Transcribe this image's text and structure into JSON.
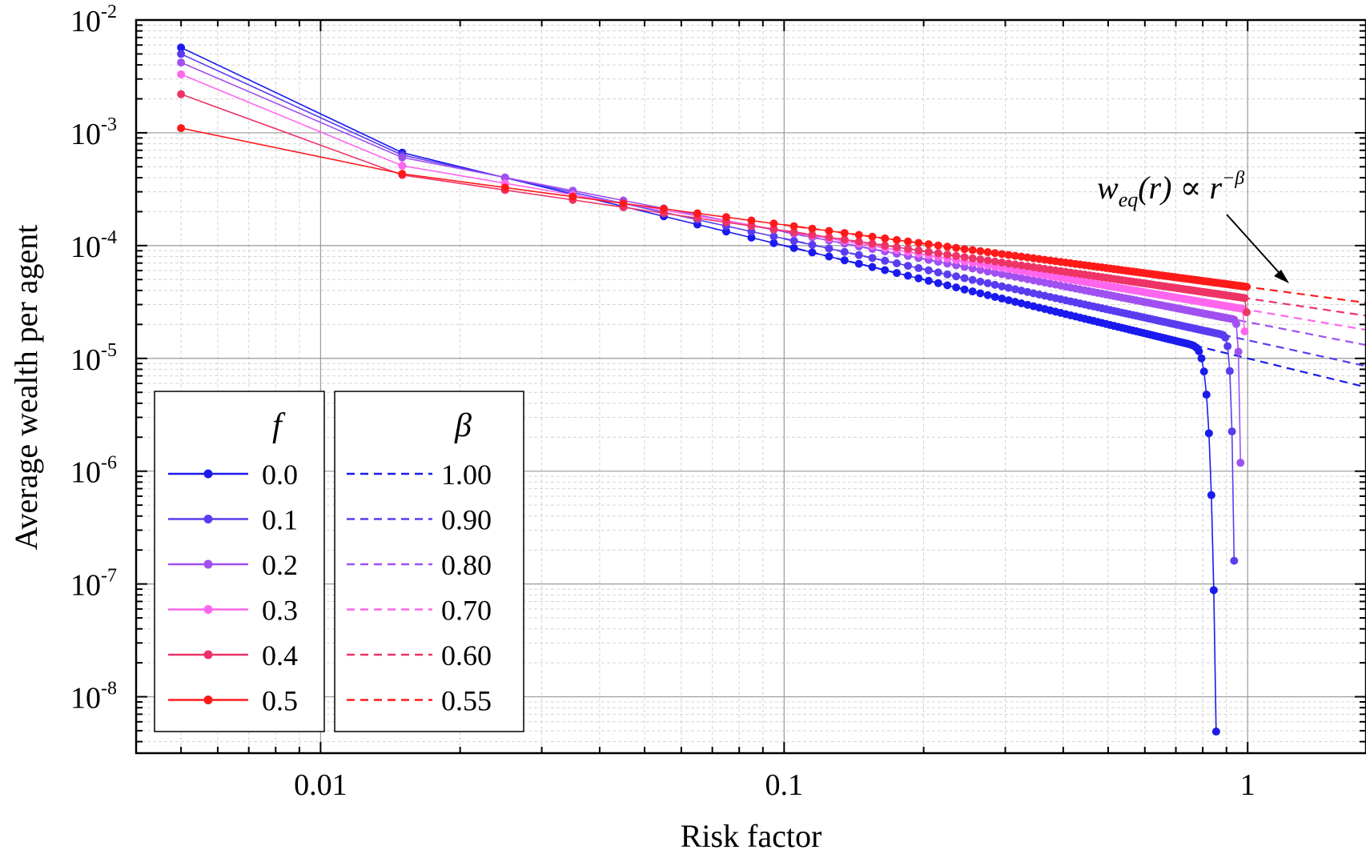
{
  "chart_data": {
    "type": "line",
    "xscale": "log",
    "yscale": "log",
    "xlabel": "Risk factor",
    "ylabel": "Average wealth per agent",
    "xlim": [
      0.004,
      1.8
    ],
    "ylim_exp": [
      -8.5,
      -2
    ],
    "x_ticks": [
      {
        "value": 0.01,
        "label": "0.01"
      },
      {
        "value": 0.1,
        "label": "0.1"
      },
      {
        "value": 1,
        "label": "1"
      }
    ],
    "y_ticks": [
      {
        "exp": -2,
        "base": "10",
        "sup": "-2"
      },
      {
        "exp": -3,
        "base": "10",
        "sup": "-3"
      },
      {
        "exp": -4,
        "base": "10",
        "sup": "-4"
      },
      {
        "exp": -5,
        "base": "10",
        "sup": "-5"
      },
      {
        "exp": -6,
        "base": "10",
        "sup": "-6"
      },
      {
        "exp": -7,
        "base": "10",
        "sup": "-7"
      },
      {
        "exp": -8,
        "base": "10",
        "sup": "-8"
      }
    ],
    "grid": true,
    "legend_f": {
      "header": "f",
      "entries": [
        {
          "label": "0.0",
          "color": "#1a1aee"
        },
        {
          "label": "0.1",
          "color": "#5a3cf0"
        },
        {
          "label": "0.2",
          "color": "#a050f0"
        },
        {
          "label": "0.3",
          "color": "#ff66ee"
        },
        {
          "label": "0.4",
          "color": "#ee3366"
        },
        {
          "label": "0.5",
          "color": "#ff1a1a"
        }
      ]
    },
    "legend_beta": {
      "header": "β",
      "entries": [
        {
          "label": "1.00",
          "color": "#1a1aee"
        },
        {
          "label": "0.90",
          "color": "#5a3cf0"
        },
        {
          "label": "0.80",
          "color": "#a050f0"
        },
        {
          "label": "0.70",
          "color": "#ff66ee"
        },
        {
          "label": "0.60",
          "color": "#ee3366"
        },
        {
          "label": "0.55",
          "color": "#ff1a1a"
        }
      ]
    },
    "annotation": {
      "w": "w",
      "sub": "eq",
      "rest": "(r) ∝ r",
      "sup": "−β"
    },
    "series": [
      {
        "name": "f = 0.0",
        "color": "#1a1aee",
        "w_at_first": 0.0057,
        "w_at_1": 1e-05,
        "exponent": 1.0,
        "drop_r": 0.86,
        "cliff_start": 0.72
      },
      {
        "name": "f = 0.1",
        "color": "#5a3cf0",
        "w_at_first": 0.005,
        "w_at_1": 1.45e-05,
        "exponent": 0.9,
        "drop_r": 0.945,
        "cliff_start": 0.86
      },
      {
        "name": "f = 0.2",
        "color": "#a050f0",
        "w_at_first": 0.0042,
        "w_at_1": 2.1e-05,
        "exponent": 0.8,
        "drop_r": 0.975,
        "cliff_start": 0.92
      },
      {
        "name": "f = 0.3",
        "color": "#ff66ee",
        "w_at_first": 0.0033,
        "w_at_1": 2.7e-05,
        "exponent": 0.7,
        "drop_r": 0.995,
        "cliff_start": 0.97
      },
      {
        "name": "f = 0.4",
        "color": "#ee3366",
        "w_at_first": 0.0022,
        "w_at_1": 3.4e-05,
        "exponent": 0.6,
        "drop_r": 0.999,
        "cliff_start": 0.99
      },
      {
        "name": "f = 0.5",
        "color": "#ff1a1a",
        "w_at_first": 0.0011,
        "w_at_1": 4.3e-05,
        "exponent": 0.55,
        "drop_r": 1.0,
        "cliff_start": 1.0
      }
    ]
  }
}
